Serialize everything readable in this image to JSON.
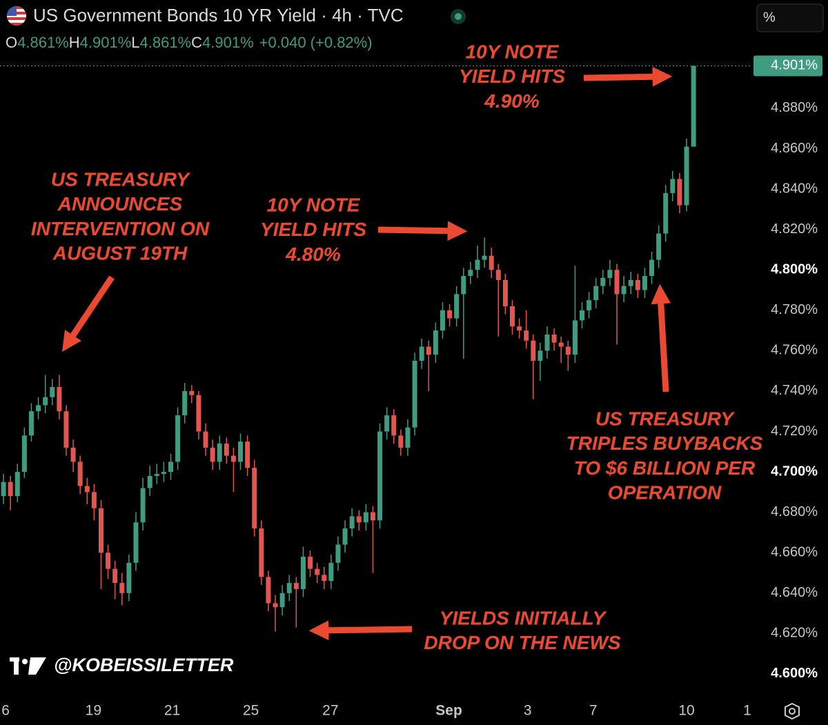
{
  "chart_data": {
    "type": "candlestick",
    "title": "US Government Bonds 10 YR Yield · 4h · TVC",
    "legend": [
      "O",
      "4.861%",
      "H",
      "4.901%",
      "L",
      "4.861%",
      "C",
      "4.901%",
      "+0.040 (+0.82%)"
    ],
    "unit_button": "%",
    "watermark": "@KOBEISSILETTER",
    "up_color": "#3f9c80",
    "down_color": "#e2564f",
    "annotation_color": "#ea4a31",
    "annotations": [
      [
        "10Y NOTE",
        "YIELD HITS",
        "4.90%"
      ],
      [
        "US TREASURY",
        "ANNOUNCES",
        "INTERVENTION ON",
        "AUGUST 19TH"
      ],
      [
        "10Y NOTE",
        "YIELD HITS",
        "4.80%"
      ],
      [
        "US TREASURY",
        "TRIPLES BUYBACKS",
        "TO $6 BILLION PER",
        "OPERATION"
      ],
      [
        "YIELDS INITIALLY",
        "DROP ON THE NEWS"
      ]
    ],
    "last_price": {
      "value": 4.901,
      "label": "4.901%"
    },
    "ylim": [
      4.5887,
      4.9336
    ],
    "yticks": [
      {
        "value": 4.6,
        "label": "4.600%"
      },
      {
        "value": 4.62,
        "label": "4.620%"
      },
      {
        "value": 4.64,
        "label": "4.640%"
      },
      {
        "value": 4.66,
        "label": "4.660%"
      },
      {
        "value": 4.68,
        "label": "4.680%"
      },
      {
        "value": 4.7,
        "label": "4.700%"
      },
      {
        "value": 4.72,
        "label": "4.720%"
      },
      {
        "value": 4.74,
        "label": "4.740%"
      },
      {
        "value": 4.76,
        "label": "4.760%"
      },
      {
        "value": 4.78,
        "label": "4.780%"
      },
      {
        "value": 4.8,
        "label": "4.800%"
      },
      {
        "value": 4.82,
        "label": "4.820%"
      },
      {
        "value": 4.84,
        "label": "4.840%"
      },
      {
        "value": 4.86,
        "label": "4.860%"
      },
      {
        "value": 4.88,
        "label": "4.880%"
      }
    ],
    "xlim": [
      -0.5,
      107.4
    ],
    "xticks": [
      {
        "value": 0.3,
        "label": "6"
      },
      {
        "value": 12.9,
        "label": "19"
      },
      {
        "value": 24.2,
        "label": "21"
      },
      {
        "value": 35.5,
        "label": "25"
      },
      {
        "value": 46.9,
        "label": "27"
      },
      {
        "value": 63.9,
        "label": "Sep"
      },
      {
        "value": 75.2,
        "label": "3"
      },
      {
        "value": 84.6,
        "label": "7"
      },
      {
        "value": 98,
        "label": "10"
      },
      {
        "value": 106.7,
        "label": "1"
      }
    ],
    "ohlc": [
      [
        4.688,
        4.699,
        4.684,
        4.695
      ],
      [
        4.695,
        4.698,
        4.681,
        4.688
      ],
      [
        4.688,
        4.704,
        4.685,
        4.7
      ],
      [
        4.7,
        4.722,
        4.697,
        4.718
      ],
      [
        4.718,
        4.734,
        4.715,
        4.73
      ],
      [
        4.73,
        4.737,
        4.726,
        4.733
      ],
      [
        4.733,
        4.748,
        4.729,
        4.737
      ],
      [
        4.737,
        4.746,
        4.733,
        4.742
      ],
      [
        4.742,
        4.748,
        4.726,
        4.73
      ],
      [
        4.73,
        4.733,
        4.708,
        4.712
      ],
      [
        4.712,
        4.716,
        4.7,
        4.705
      ],
      [
        4.705,
        4.708,
        4.689,
        4.693
      ],
      [
        4.693,
        4.697,
        4.684,
        4.69
      ],
      [
        4.69,
        4.694,
        4.676,
        4.682
      ],
      [
        4.682,
        4.686,
        4.642,
        4.66
      ],
      [
        4.66,
        4.664,
        4.647,
        4.652
      ],
      [
        4.652,
        4.656,
        4.637,
        4.645
      ],
      [
        4.645,
        4.65,
        4.634,
        4.64
      ],
      [
        4.64,
        4.659,
        4.636,
        4.655
      ],
      [
        4.655,
        4.68,
        4.651,
        4.675
      ],
      [
        4.675,
        4.697,
        4.671,
        4.692
      ],
      [
        4.692,
        4.703,
        4.688,
        4.698
      ],
      [
        4.698,
        4.704,
        4.694,
        4.699
      ],
      [
        4.699,
        4.705,
        4.695,
        4.7
      ],
      [
        4.7,
        4.709,
        4.696,
        4.705
      ],
      [
        4.705,
        4.732,
        4.701,
        4.728
      ],
      [
        4.728,
        4.744,
        4.724,
        4.74
      ],
      [
        4.74,
        4.743,
        4.734,
        4.738
      ],
      [
        4.738,
        4.74,
        4.716,
        4.72
      ],
      [
        4.72,
        4.724,
        4.708,
        4.712
      ],
      [
        4.712,
        4.716,
        4.701,
        4.705
      ],
      [
        4.705,
        4.718,
        4.701,
        4.714
      ],
      [
        4.714,
        4.717,
        4.704,
        4.708
      ],
      [
        4.708,
        4.712,
        4.69,
        4.705
      ],
      [
        4.705,
        4.719,
        4.701,
        4.715
      ],
      [
        4.715,
        4.718,
        4.698,
        4.702
      ],
      [
        4.702,
        4.706,
        4.668,
        4.672
      ],
      [
        4.672,
        4.676,
        4.644,
        4.648
      ],
      [
        4.648,
        4.651,
        4.631,
        4.635
      ],
      [
        4.635,
        4.639,
        4.621,
        4.633
      ],
      [
        4.633,
        4.644,
        4.629,
        4.64
      ],
      [
        4.64,
        4.649,
        4.636,
        4.645
      ],
      [
        4.645,
        4.648,
        4.623,
        4.642
      ],
      [
        4.642,
        4.663,
        4.638,
        4.658
      ],
      [
        4.658,
        4.661,
        4.648,
        4.652
      ],
      [
        4.652,
        4.655,
        4.645,
        4.649
      ],
      [
        4.649,
        4.653,
        4.642,
        4.646
      ],
      [
        4.646,
        4.659,
        4.642,
        4.655
      ],
      [
        4.655,
        4.668,
        4.651,
        4.664
      ],
      [
        4.664,
        4.676,
        4.66,
        4.672
      ],
      [
        4.672,
        4.682,
        4.668,
        4.678
      ],
      [
        4.678,
        4.681,
        4.671,
        4.675
      ],
      [
        4.675,
        4.684,
        4.671,
        4.68
      ],
      [
        4.68,
        4.683,
        4.65,
        4.676
      ],
      [
        4.676,
        4.724,
        4.672,
        4.72
      ],
      [
        4.72,
        4.732,
        4.716,
        4.728
      ],
      [
        4.728,
        4.731,
        4.714,
        4.718
      ],
      [
        4.718,
        4.721,
        4.708,
        4.712
      ],
      [
        4.712,
        4.726,
        4.708,
        4.722
      ],
      [
        4.722,
        4.759,
        4.718,
        4.755
      ],
      [
        4.755,
        4.766,
        4.751,
        4.762
      ],
      [
        4.762,
        4.765,
        4.74,
        4.758
      ],
      [
        4.758,
        4.774,
        4.754,
        4.77
      ],
      [
        4.77,
        4.784,
        4.766,
        4.78
      ],
      [
        4.78,
        4.783,
        4.772,
        4.776
      ],
      [
        4.776,
        4.792,
        4.772,
        4.788
      ],
      [
        4.788,
        4.801,
        4.756,
        4.797
      ],
      [
        4.797,
        4.804,
        4.793,
        4.8
      ],
      [
        4.8,
        4.812,
        4.796,
        4.805
      ],
      [
        4.805,
        4.816,
        4.801,
        4.807
      ],
      [
        4.807,
        4.811,
        4.796,
        4.8
      ],
      [
        4.8,
        4.803,
        4.767,
        4.795
      ],
      [
        4.795,
        4.798,
        4.778,
        4.782
      ],
      [
        4.782,
        4.785,
        4.768,
        4.772
      ],
      [
        4.772,
        4.776,
        4.766,
        4.77
      ],
      [
        4.77,
        4.78,
        4.761,
        4.765
      ],
      [
        4.765,
        4.768,
        4.736,
        4.755
      ],
      [
        4.755,
        4.764,
        4.745,
        4.76
      ],
      [
        4.76,
        4.772,
        4.756,
        4.768
      ],
      [
        4.768,
        4.771,
        4.76,
        4.764
      ],
      [
        4.764,
        4.767,
        4.754,
        4.762
      ],
      [
        4.762,
        4.765,
        4.75,
        4.758
      ],
      [
        4.758,
        4.802,
        4.754,
        4.775
      ],
      [
        4.775,
        4.784,
        4.771,
        4.78
      ],
      [
        4.78,
        4.789,
        4.776,
        4.785
      ],
      [
        4.785,
        4.796,
        4.781,
        4.792
      ],
      [
        4.792,
        4.8,
        4.788,
        4.796
      ],
      [
        4.796,
        4.805,
        4.792,
        4.8
      ],
      [
        4.8,
        4.803,
        4.763,
        4.788
      ],
      [
        4.788,
        4.797,
        4.784,
        4.792
      ],
      [
        4.792,
        4.799,
        4.788,
        4.795
      ],
      [
        4.795,
        4.798,
        4.786,
        4.79
      ],
      [
        4.79,
        4.801,
        4.786,
        4.797
      ],
      [
        4.797,
        4.809,
        4.793,
        4.805
      ],
      [
        4.805,
        4.822,
        4.801,
        4.818
      ],
      [
        4.818,
        4.842,
        4.814,
        4.838
      ],
      [
        4.838,
        4.849,
        4.834,
        4.845
      ],
      [
        4.845,
        4.848,
        4.828,
        4.832
      ],
      [
        4.832,
        4.865,
        4.829,
        4.861
      ],
      [
        4.861,
        4.901,
        4.861,
        4.901
      ]
    ]
  }
}
